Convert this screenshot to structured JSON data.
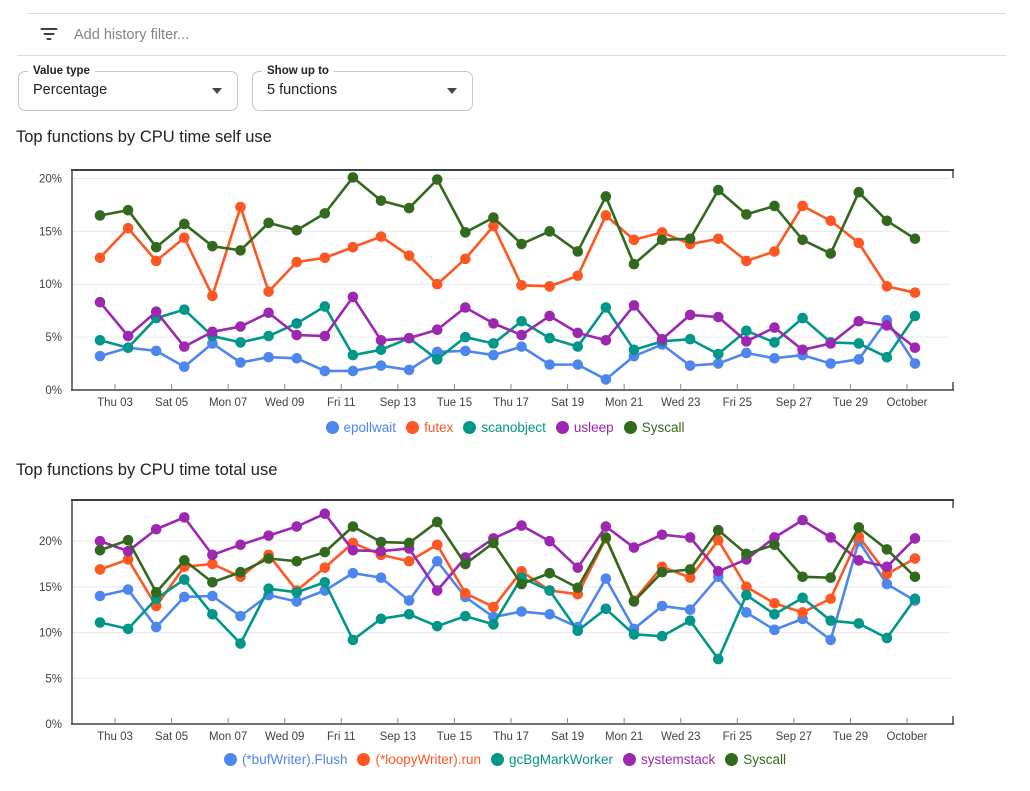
{
  "filter_bar": {
    "placeholder": "Add history filter...",
    "icon": "filter-list-icon"
  },
  "controls": [
    {
      "label": "Value type",
      "value": "Percentage"
    },
    {
      "label": "Show up to",
      "value": "5 functions"
    }
  ],
  "chart_data": [
    {
      "type": "line",
      "title": "Top functions by CPU time self use",
      "xlabel": "",
      "ylabel": "",
      "x_tick_labels": [
        "Thu 03",
        "Sat 05",
        "Mon 07",
        "Wed 09",
        "Fri 11",
        "Sep 13",
        "Tue 15",
        "Thu 17",
        "Sat 19",
        "Mon 21",
        "Wed 23",
        "Fri 25",
        "Sep 27",
        "Tue 29",
        "October"
      ],
      "y_tick_labels": [
        "0%",
        "5%",
        "10%",
        "15%",
        "20%"
      ],
      "y_tick_values": [
        0,
        5,
        10,
        15,
        20
      ],
      "ylim": [
        0,
        20.8
      ],
      "grid": true,
      "legend_position": "bottom",
      "series": [
        {
          "name": "epollwait",
          "color": "#4e86f0",
          "values": [
            3.2,
            4.0,
            3.7,
            2.2,
            4.4,
            2.6,
            3.1,
            3.0,
            1.8,
            1.8,
            2.3,
            1.9,
            3.6,
            3.7,
            3.3,
            4.1,
            2.4,
            2.4,
            1.0,
            3.2,
            4.3,
            2.3,
            2.5,
            3.5,
            3.0,
            3.3,
            2.5,
            2.9,
            6.6,
            2.5
          ]
        },
        {
          "name": "futex",
          "color": "#ff5722",
          "values": [
            12.5,
            15.3,
            12.2,
            14.4,
            8.9,
            17.3,
            9.3,
            12.1,
            12.5,
            13.5,
            14.5,
            12.7,
            10.0,
            12.4,
            15.5,
            9.9,
            9.8,
            10.8,
            16.5,
            14.2,
            14.9,
            13.8,
            14.3,
            12.2,
            13.1,
            17.4,
            16.0,
            13.9,
            9.8,
            9.2
          ]
        },
        {
          "name": "scanobject",
          "color": "#009688",
          "values": [
            4.7,
            4.0,
            6.8,
            7.6,
            5.1,
            4.5,
            5.1,
            6.3,
            7.9,
            3.3,
            3.8,
            4.9,
            2.9,
            5.0,
            4.4,
            6.5,
            4.9,
            4.1,
            7.8,
            3.8,
            4.6,
            4.8,
            3.4,
            5.6,
            4.5,
            6.8,
            4.5,
            4.4,
            3.1,
            7.0
          ]
        },
        {
          "name": "usleep",
          "color": "#9c27b0",
          "values": [
            8.3,
            5.1,
            7.4,
            4.1,
            5.5,
            6.0,
            7.3,
            5.2,
            5.1,
            8.8,
            4.7,
            4.9,
            5.7,
            7.8,
            6.3,
            5.2,
            7.0,
            5.4,
            4.7,
            8.0,
            4.8,
            7.1,
            6.9,
            4.6,
            5.9,
            3.8,
            4.4,
            6.5,
            6.1,
            4.0
          ]
        },
        {
          "name": "Syscall",
          "color": "#33691e",
          "values": [
            16.5,
            17.0,
            13.5,
            15.7,
            13.6,
            13.2,
            15.8,
            15.1,
            16.7,
            20.1,
            17.9,
            17.2,
            19.9,
            14.9,
            16.3,
            13.8,
            15.0,
            13.1,
            18.3,
            11.9,
            14.2,
            14.3,
            18.9,
            16.6,
            17.4,
            14.2,
            12.9,
            18.7,
            16.0,
            14.3
          ]
        }
      ]
    },
    {
      "type": "line",
      "title": "Top functions by CPU time total use",
      "xlabel": "",
      "ylabel": "",
      "x_tick_labels": [
        "Thu 03",
        "Sat 05",
        "Mon 07",
        "Wed 09",
        "Fri 11",
        "Sep 13",
        "Tue 15",
        "Thu 17",
        "Sat 19",
        "Mon 21",
        "Wed 23",
        "Fri 25",
        "Sep 27",
        "Tue 29",
        "October"
      ],
      "y_tick_labels": [
        "0%",
        "5%",
        "10%",
        "15%",
        "20%"
      ],
      "y_tick_values": [
        0,
        5,
        10,
        15,
        20
      ],
      "ylim": [
        0,
        24.5
      ],
      "grid": true,
      "legend_position": "bottom",
      "series": [
        {
          "name": "(*bufWriter).Flush",
          "color": "#4e86f0",
          "values": [
            14.0,
            14.7,
            10.6,
            13.9,
            14.0,
            11.8,
            14.1,
            13.4,
            14.6,
            16.5,
            16.0,
            13.5,
            17.8,
            13.9,
            11.7,
            12.3,
            12.0,
            10.6,
            15.9,
            10.4,
            12.9,
            12.5,
            16.1,
            12.2,
            10.3,
            11.5,
            9.2,
            20.0,
            15.3,
            13.5
          ]
        },
        {
          "name": "(*loopyWriter).run",
          "color": "#ff5722",
          "values": [
            16.9,
            18.0,
            12.9,
            17.2,
            17.5,
            16.1,
            18.5,
            14.6,
            17.1,
            19.8,
            18.5,
            17.8,
            19.6,
            14.3,
            12.8,
            16.7,
            14.6,
            14.2,
            20.3,
            13.5,
            17.2,
            16.0,
            20.1,
            15.0,
            13.2,
            12.2,
            13.7,
            20.5,
            16.4,
            18.1
          ]
        },
        {
          "name": "gcBgMarkWorker",
          "color": "#009688",
          "values": [
            11.1,
            10.4,
            13.7,
            15.8,
            12.0,
            8.8,
            14.8,
            14.4,
            15.5,
            9.2,
            11.5,
            12.0,
            10.7,
            11.8,
            10.9,
            16.0,
            14.6,
            10.2,
            12.6,
            9.8,
            9.6,
            11.3,
            7.1,
            14.1,
            12.0,
            13.8,
            11.3,
            11.0,
            9.4,
            13.7
          ]
        },
        {
          "name": "systemstack",
          "color": "#9c27b0",
          "values": [
            20.0,
            18.9,
            21.3,
            22.6,
            18.5,
            19.6,
            20.6,
            21.6,
            23.0,
            19.0,
            18.9,
            19.2,
            14.6,
            18.2,
            20.3,
            21.7,
            20.0,
            17.1,
            21.6,
            19.3,
            20.7,
            20.4,
            16.7,
            18.0,
            20.4,
            22.3,
            20.4,
            17.9,
            17.2,
            20.3
          ]
        },
        {
          "name": "Syscall",
          "color": "#33691e",
          "values": [
            19.0,
            20.1,
            14.4,
            17.9,
            15.5,
            16.6,
            18.1,
            17.8,
            18.8,
            21.6,
            19.9,
            19.8,
            22.1,
            17.5,
            19.8,
            15.3,
            16.5,
            14.9,
            20.4,
            13.4,
            16.6,
            16.9,
            21.2,
            18.6,
            19.6,
            16.1,
            16.0,
            21.5,
            19.1,
            16.1
          ]
        }
      ]
    }
  ]
}
